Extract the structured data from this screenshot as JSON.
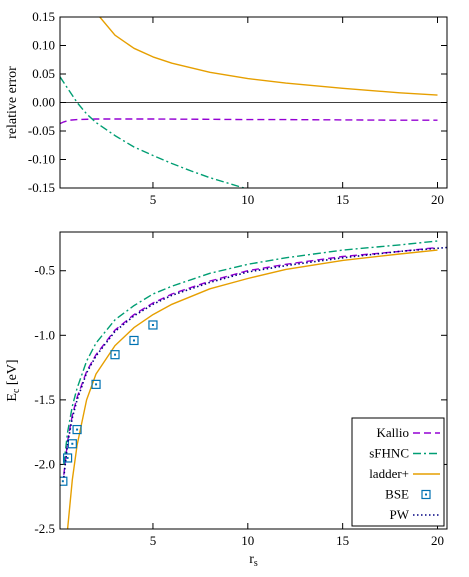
{
  "colors": {
    "kallio": "#9400d3",
    "sfhnc": "#009e73",
    "ladder": "#e69f00",
    "bse": "#0072b2",
    "pw": "#000080"
  },
  "chart_data": [
    {
      "type": "line",
      "panel": "top",
      "xlabel": "",
      "ylabel": "relative error",
      "xlim": [
        0.1,
        20.5
      ],
      "ylim": [
        -0.15,
        0.15
      ],
      "xticks": [
        5,
        10,
        15,
        20
      ],
      "xtick_labels": [
        "5",
        "10",
        "15",
        "20"
      ],
      "yticks": [
        0.15,
        0.1,
        0.05,
        0.0,
        -0.05,
        -0.1,
        -0.15
      ],
      "ytick_labels": [
        "0.15",
        "0.10",
        "0.05",
        "0.00",
        "-0.05",
        "-0.10",
        "-0.15"
      ],
      "zero_line": true,
      "series": [
        {
          "key": "kallio",
          "style": "dashed",
          "x": [
            0.1,
            0.3,
            0.6,
            1.0,
            2.0,
            3.0,
            5.0,
            8.0,
            10.0,
            12.0,
            15.0,
            18.0,
            20.0
          ],
          "y": [
            -0.037,
            -0.034,
            -0.031,
            -0.03,
            -0.029,
            -0.029,
            -0.029,
            -0.0295,
            -0.03,
            -0.03,
            -0.0305,
            -0.031,
            -0.031
          ]
        },
        {
          "key": "sfhnc",
          "style": "dashdot",
          "x": [
            0.1,
            0.5,
            1.0,
            1.5,
            2.0,
            3.0,
            4.0,
            5.0,
            6.0,
            7.0,
            8.0,
            9.0,
            9.8
          ],
          "y": [
            0.045,
            0.025,
            0.0,
            -0.02,
            -0.035,
            -0.058,
            -0.078,
            -0.093,
            -0.107,
            -0.12,
            -0.132,
            -0.142,
            -0.15
          ]
        },
        {
          "key": "ladder",
          "style": "solid",
          "x": [
            2.2,
            3.0,
            4.0,
            5.0,
            6.0,
            8.0,
            10.0,
            12.0,
            15.0,
            18.0,
            20.0
          ],
          "y": [
            0.15,
            0.118,
            0.095,
            0.08,
            0.069,
            0.053,
            0.042,
            0.034,
            0.025,
            0.017,
            0.013
          ]
        }
      ]
    },
    {
      "type": "line",
      "panel": "bottom",
      "xlabel": "r",
      "xlabel_sub": "s",
      "ylabel": "E",
      "ylabel_sub": "c",
      "ylabel_unit": " [eV]",
      "xlim": [
        0.1,
        20.5
      ],
      "ylim": [
        -2.5,
        -0.2
      ],
      "xticks": [
        5,
        10,
        15,
        20
      ],
      "xtick_labels": [
        "5",
        "10",
        "15",
        "20"
      ],
      "yticks": [
        -0.5,
        -1.0,
        -1.5,
        -2.0,
        -2.5
      ],
      "ytick_labels": [
        "-0.5",
        "-1.0",
        "-1.5",
        "-2.0",
        "-2.5"
      ],
      "legend_position": "bottom-right",
      "series": [
        {
          "key": "kallio",
          "name": "Kallio",
          "style": "dashed",
          "x": [
            0.3,
            0.5,
            0.75,
            1.0,
            1.5,
            2.0,
            3.0,
            4.0,
            5.0,
            6.0,
            8.0,
            10.0,
            12.0,
            15.0,
            18.0,
            20.0
          ],
          "y": [
            -2.08,
            -1.82,
            -1.62,
            -1.48,
            -1.28,
            -1.15,
            -0.96,
            -0.84,
            -0.75,
            -0.68,
            -0.58,
            -0.5,
            -0.45,
            -0.39,
            -0.35,
            -0.32
          ]
        },
        {
          "key": "sfhnc",
          "name": "sFHNC",
          "style": "dashdot",
          "x": [
            0.3,
            0.5,
            0.75,
            1.0,
            1.5,
            2.0,
            3.0,
            4.0,
            5.0,
            6.0,
            8.0,
            10.0,
            12.0,
            15.0,
            18.0,
            20.0
          ],
          "y": [
            -2.0,
            -1.75,
            -1.55,
            -1.41,
            -1.2,
            -1.06,
            -0.88,
            -0.77,
            -0.68,
            -0.62,
            -0.52,
            -0.45,
            -0.4,
            -0.34,
            -0.3,
            -0.27
          ]
        },
        {
          "key": "ladder",
          "name": "ladder+",
          "style": "solid",
          "x": [
            0.5,
            0.75,
            1.0,
            1.5,
            2.0,
            3.0,
            4.0,
            5.0,
            6.0,
            8.0,
            10.0,
            12.0,
            15.0,
            18.0,
            20.0
          ],
          "y": [
            -2.5,
            -2.12,
            -1.85,
            -1.5,
            -1.3,
            -1.08,
            -0.94,
            -0.84,
            -0.76,
            -0.64,
            -0.56,
            -0.49,
            -0.42,
            -0.37,
            -0.34
          ]
        },
        {
          "key": "bse",
          "name": "BSE",
          "style": "markers",
          "x": [
            0.25,
            0.5,
            0.75,
            1.0,
            2.0,
            3.0,
            4.0,
            5.0
          ],
          "y": [
            -2.13,
            -1.95,
            -1.84,
            -1.73,
            -1.38,
            -1.15,
            -1.04,
            -0.92
          ]
        },
        {
          "key": "pw",
          "name": "PW",
          "style": "dotted",
          "x": [
            0.3,
            0.5,
            0.75,
            1.0,
            1.5,
            2.0,
            3.0,
            4.0,
            5.0,
            6.0,
            8.0,
            10.0,
            12.0,
            15.0,
            18.0,
            20.5
          ],
          "y": [
            -2.1,
            -1.84,
            -1.64,
            -1.5,
            -1.29,
            -1.16,
            -0.97,
            -0.85,
            -0.76,
            -0.69,
            -0.59,
            -0.51,
            -0.46,
            -0.4,
            -0.35,
            -0.32
          ]
        }
      ]
    }
  ]
}
